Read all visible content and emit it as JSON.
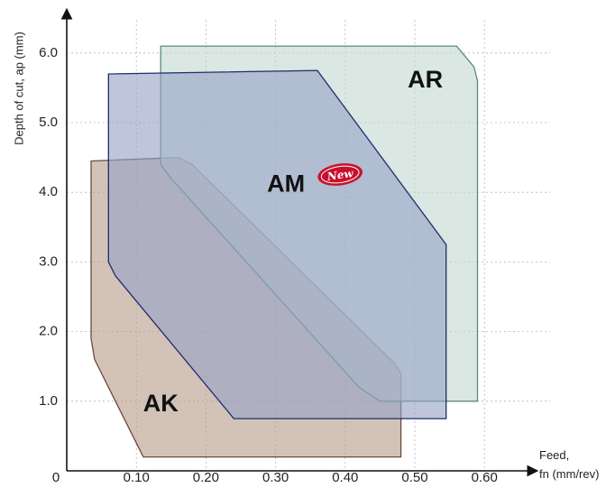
{
  "chart_data": {
    "type": "area",
    "title": "",
    "xlabel_line1": "Feed,",
    "xlabel_line2": "fn (mm/rev)",
    "ylabel": "Depth of cut, ap (mm)",
    "origin_label": "0",
    "xlim": [
      0,
      0.64
    ],
    "ylim": [
      0,
      6.6
    ],
    "xticks": [
      0.1,
      0.2,
      0.3,
      0.4,
      0.5,
      0.6
    ],
    "xtick_labels": [
      "0.10",
      "0.20",
      "0.30",
      "0.40",
      "0.50",
      "0.60"
    ],
    "yticks": [
      1.0,
      2.0,
      3.0,
      4.0,
      5.0,
      6.0
    ],
    "ytick_labels": [
      "1.0",
      "2.0",
      "3.0",
      "4.0",
      "5.0",
      "6.0"
    ],
    "grid": true,
    "series": [
      {
        "name": "AK",
        "color": "#b89c8c",
        "stroke": "#6b4a3c",
        "points": [
          [
            0.035,
            4.45
          ],
          [
            0.16,
            4.5
          ],
          [
            0.18,
            4.4
          ],
          [
            0.47,
            1.55
          ],
          [
            0.48,
            1.4
          ],
          [
            0.48,
            0.2
          ],
          [
            0.11,
            0.2
          ],
          [
            0.04,
            1.6
          ],
          [
            0.035,
            1.9
          ]
        ]
      },
      {
        "name": "AR",
        "color": "#c3d9d0",
        "stroke": "#5a8a7c",
        "points": [
          [
            0.135,
            6.1
          ],
          [
            0.56,
            6.1
          ],
          [
            0.585,
            5.8
          ],
          [
            0.59,
            5.6
          ],
          [
            0.59,
            1.0
          ],
          [
            0.45,
            1.0
          ],
          [
            0.42,
            1.2
          ],
          [
            0.15,
            4.2
          ],
          [
            0.135,
            4.4
          ]
        ]
      },
      {
        "name": "AM",
        "color": "#97a3c5",
        "stroke": "#1c2d6b",
        "points": [
          [
            0.06,
            5.7
          ],
          [
            0.36,
            5.75
          ],
          [
            0.545,
            3.25
          ],
          [
            0.545,
            0.75
          ],
          [
            0.24,
            0.75
          ],
          [
            0.07,
            2.8
          ],
          [
            0.06,
            3.0
          ]
        ]
      }
    ],
    "labels": [
      {
        "text": "AR",
        "x": 0.515,
        "y": 5.6
      },
      {
        "text": "AM",
        "x": 0.315,
        "y": 4.1
      },
      {
        "text": "AK",
        "x": 0.135,
        "y": 0.95
      }
    ],
    "badge": {
      "text": "New",
      "color": "#c8102e",
      "anchor_label": "AM"
    }
  }
}
